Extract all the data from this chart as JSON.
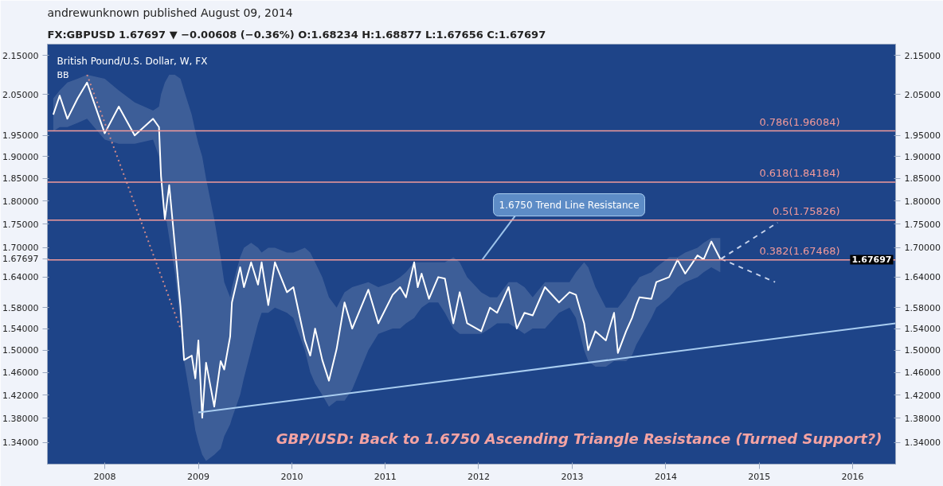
{
  "chart_data": {
    "type": "line",
    "title": "British Pound/U.S. Dollar, W, FX",
    "subtitle": "BB",
    "annotations": [
      "andrewunknown published August 09, 2014",
      "FX:GBPUSD 1.67697 ▼ −0.00608 (−0.36%) O:1.68234 H:1.68877 L:1.67656 C:1.67697",
      "GBP/USD: Back to 1.6750 Ascending Triangle Resistance (Turned Support?)",
      {
        "text": "1.6750 Trend Line Resistance",
        "x": "2012-01-15",
        "y": 1.675
      },
      {
        "text": "1.67697",
        "x": "2016-06-17",
        "y": 1.67697
      }
    ],
    "log": true,
    "grid": false,
    "xlim": [
      "2007-05-22",
      "2016-06-17"
    ],
    "xticks": [
      {
        "value": "2008",
        "label": "2008"
      },
      {
        "value": "2009",
        "label": "2009"
      },
      {
        "value": "2010",
        "label": "2010"
      },
      {
        "value": "2011",
        "label": "2011"
      },
      {
        "value": "2012",
        "label": "2012"
      },
      {
        "value": "2013",
        "label": "2013"
      },
      {
        "value": "2014",
        "label": "2014"
      },
      {
        "value": "2015",
        "label": "2015"
      },
      {
        "value": "2016",
        "label": "2016"
      }
    ],
    "ylim": [
      1.305,
      2.18
    ],
    "yticks": [
      {
        "value": 1.34,
        "label": "1.34000"
      },
      {
        "value": 1.38,
        "label": "1.38000"
      },
      {
        "value": 1.42,
        "label": "1.42000"
      },
      {
        "value": 1.46,
        "label": "1.46000"
      },
      {
        "value": 1.5,
        "label": "1.50000"
      },
      {
        "value": 1.54,
        "label": "1.54000"
      },
      {
        "value": 1.58,
        "label": "1.58000"
      },
      {
        "value": 1.64,
        "label": "1.64000"
      },
      1.67697,
      {
        "value": 1.7,
        "label": "1.70000"
      },
      {
        "value": 1.75,
        "label": "1.75000"
      },
      {
        "value": 1.8,
        "label": "1.80000"
      },
      {
        "value": 1.85,
        "label": "1.85000"
      },
      {
        "value": 1.9,
        "label": "1.90000"
      },
      {
        "value": 1.95,
        "label": "1.95000"
      },
      {
        "value": 2.05,
        "label": "2.05000"
      },
      {
        "value": 2.15,
        "label": "2.15000"
      }
    ],
    "ref_lines": [
      {
        "axis": "y",
        "value": 1.96084,
        "label": "0.786(1.96084)",
        "color": "#f29a9a"
      },
      {
        "axis": "y",
        "value": 1.84184,
        "label": "0.618(1.84184)",
        "color": "#f29a9a"
      },
      {
        "axis": "y",
        "value": 1.75826,
        "label": "0.5(1.75826)",
        "color": "#f29a9a"
      },
      {
        "axis": "y",
        "value": 1.67468,
        "label": "0.382(1.67468)",
        "color": "#f29a9a"
      }
    ],
    "series": [
      {
        "color": "#ffffff",
        "x": [
          "2007-06-14",
          "2007-07-09",
          "2007-08-08",
          "2007-09-17",
          "2007-10-24",
          "2008-01-01",
          "2008-02-25",
          "2008-04-27",
          "2008-07-08",
          "2008-07-31",
          "2008-08-08",
          "2008-08-23",
          "2008-09-09",
          "2008-10-01",
          "2008-10-23",
          "2008-11-06",
          "2008-12-06",
          "2008-12-20",
          "2009-01-01",
          "2009-01-16",
          "2009-01-31",
          "2009-03-04",
          "2009-03-29",
          "2009-04-12",
          "2009-05-05",
          "2009-05-12",
          "2009-06-13",
          "2009-06-28",
          "2009-07-26",
          "2009-08-22",
          "2009-09-05",
          "2009-10-01",
          "2009-10-27",
          "2009-12-13",
          "2010-01-07",
          "2010-02-21",
          "2010-03-14",
          "2010-04-02",
          "2010-04-30",
          "2010-05-26",
          "2010-06-25",
          "2010-07-26",
          "2010-08-25",
          "2010-10-27",
          "2010-12-05",
          "2011-01-30",
          "2011-02-28",
          "2011-03-23",
          "2011-04-24",
          "2011-05-08",
          "2011-05-23",
          "2011-06-21",
          "2011-07-27",
          "2011-08-22",
          "2011-09-24",
          "2011-10-19",
          "2011-11-17",
          "2012-01-11",
          "2012-02-14",
          "2012-03-13",
          "2012-04-27",
          "2012-05-29",
          "2012-06-28",
          "2012-07-30",
          "2012-09-16",
          "2012-11-10",
          "2012-12-21",
          "2013-01-15",
          "2013-02-16",
          "2013-03-04",
          "2013-04-01",
          "2013-05-12",
          "2013-06-13",
          "2013-06-28",
          "2013-07-30",
          "2013-08-22",
          "2013-09-08",
          "2013-09-20",
          "2013-11-06",
          "2013-11-25",
          "2014-01-14",
          "2014-02-16",
          "2014-03-18",
          "2014-05-05",
          "2014-05-29",
          "2014-06-28",
          "2014-08-02"
        ],
        "values": [
          2.0,
          2.047,
          1.99,
          2.04,
          2.08,
          1.955,
          2.02,
          1.95,
          1.99,
          1.97,
          1.855,
          1.76,
          1.835,
          1.705,
          1.582,
          1.482,
          1.49,
          1.449,
          1.518,
          1.381,
          1.477,
          1.4,
          1.48,
          1.465,
          1.525,
          1.59,
          1.66,
          1.62,
          1.67,
          1.625,
          1.67,
          1.585,
          1.67,
          1.61,
          1.62,
          1.518,
          1.49,
          1.54,
          1.482,
          1.445,
          1.502,
          1.59,
          1.54,
          1.615,
          1.55,
          1.605,
          1.62,
          1.6,
          1.67,
          1.62,
          1.647,
          1.597,
          1.64,
          1.637,
          1.55,
          1.61,
          1.55,
          1.535,
          1.58,
          1.57,
          1.62,
          1.54,
          1.57,
          1.565,
          1.62,
          1.59,
          1.61,
          1.605,
          1.55,
          1.5,
          1.535,
          1.518,
          1.57,
          1.495,
          1.535,
          1.56,
          1.585,
          1.6,
          1.597,
          1.63,
          1.64,
          1.675,
          1.647,
          1.684,
          1.676,
          1.713,
          1.67697
        ],
        "lower": [
          1.96,
          1.97,
          1.97,
          1.98,
          1.99,
          1.94,
          1.93,
          1.93,
          1.94,
          1.9,
          1.84,
          1.78,
          1.72,
          1.65,
          1.55,
          1.48,
          1.4,
          1.36,
          1.34,
          1.32,
          1.31,
          1.32,
          1.33,
          1.35,
          1.37,
          1.38,
          1.42,
          1.45,
          1.5,
          1.55,
          1.57,
          1.57,
          1.58,
          1.57,
          1.56,
          1.5,
          1.46,
          1.44,
          1.42,
          1.4,
          1.41,
          1.41,
          1.43,
          1.5,
          1.53,
          1.54,
          1.54,
          1.55,
          1.56,
          1.57,
          1.58,
          1.59,
          1.59,
          1.57,
          1.54,
          1.53,
          1.53,
          1.53,
          1.54,
          1.55,
          1.55,
          1.54,
          1.53,
          1.54,
          1.54,
          1.57,
          1.58,
          1.56,
          1.5,
          1.48,
          1.47,
          1.47,
          1.48,
          1.48,
          1.48,
          1.49,
          1.51,
          1.52,
          1.56,
          1.58,
          1.6,
          1.62,
          1.63,
          1.64,
          1.65,
          1.66,
          1.65
        ],
        "upper": [
          2.04,
          2.06,
          2.08,
          2.09,
          2.1,
          2.09,
          2.06,
          2.03,
          2.01,
          2.02,
          2.05,
          2.08,
          2.1,
          2.1,
          2.09,
          2.06,
          2.0,
          1.96,
          1.93,
          1.9,
          1.85,
          1.76,
          1.68,
          1.63,
          1.6,
          1.62,
          1.68,
          1.7,
          1.71,
          1.7,
          1.69,
          1.7,
          1.7,
          1.69,
          1.69,
          1.7,
          1.69,
          1.67,
          1.64,
          1.6,
          1.58,
          1.61,
          1.62,
          1.63,
          1.62,
          1.63,
          1.64,
          1.65,
          1.67,
          1.67,
          1.67,
          1.67,
          1.67,
          1.67,
          1.68,
          1.67,
          1.64,
          1.61,
          1.6,
          1.6,
          1.63,
          1.63,
          1.62,
          1.6,
          1.63,
          1.63,
          1.63,
          1.65,
          1.67,
          1.66,
          1.62,
          1.58,
          1.58,
          1.58,
          1.6,
          1.62,
          1.63,
          1.64,
          1.65,
          1.66,
          1.68,
          1.68,
          1.69,
          1.7,
          1.71,
          1.72,
          1.72
        ]
      },
      {
        "color": "#a9cdf0",
        "x": [
          "2009-01-01",
          "2016-06-17"
        ],
        "values": [
          1.39,
          1.55
        ]
      },
      {
        "color": "#d08a8a",
        "line_style": "dotted",
        "x": [
          "2007-10-24",
          "2008-10-23"
        ],
        "values": [
          2.1,
          1.54
        ]
      },
      {
        "color": "#c8d4ec",
        "line_style": "dashed",
        "x": [
          "2014-08-05",
          "2015-03-14"
        ],
        "values": [
          1.677,
          1.753
        ]
      },
      {
        "color": "#c8d4ec",
        "line_style": "dashed",
        "x": [
          "2014-08-05",
          "2015-03-04"
        ],
        "values": [
          1.677,
          1.63
        ]
      }
    ]
  }
}
